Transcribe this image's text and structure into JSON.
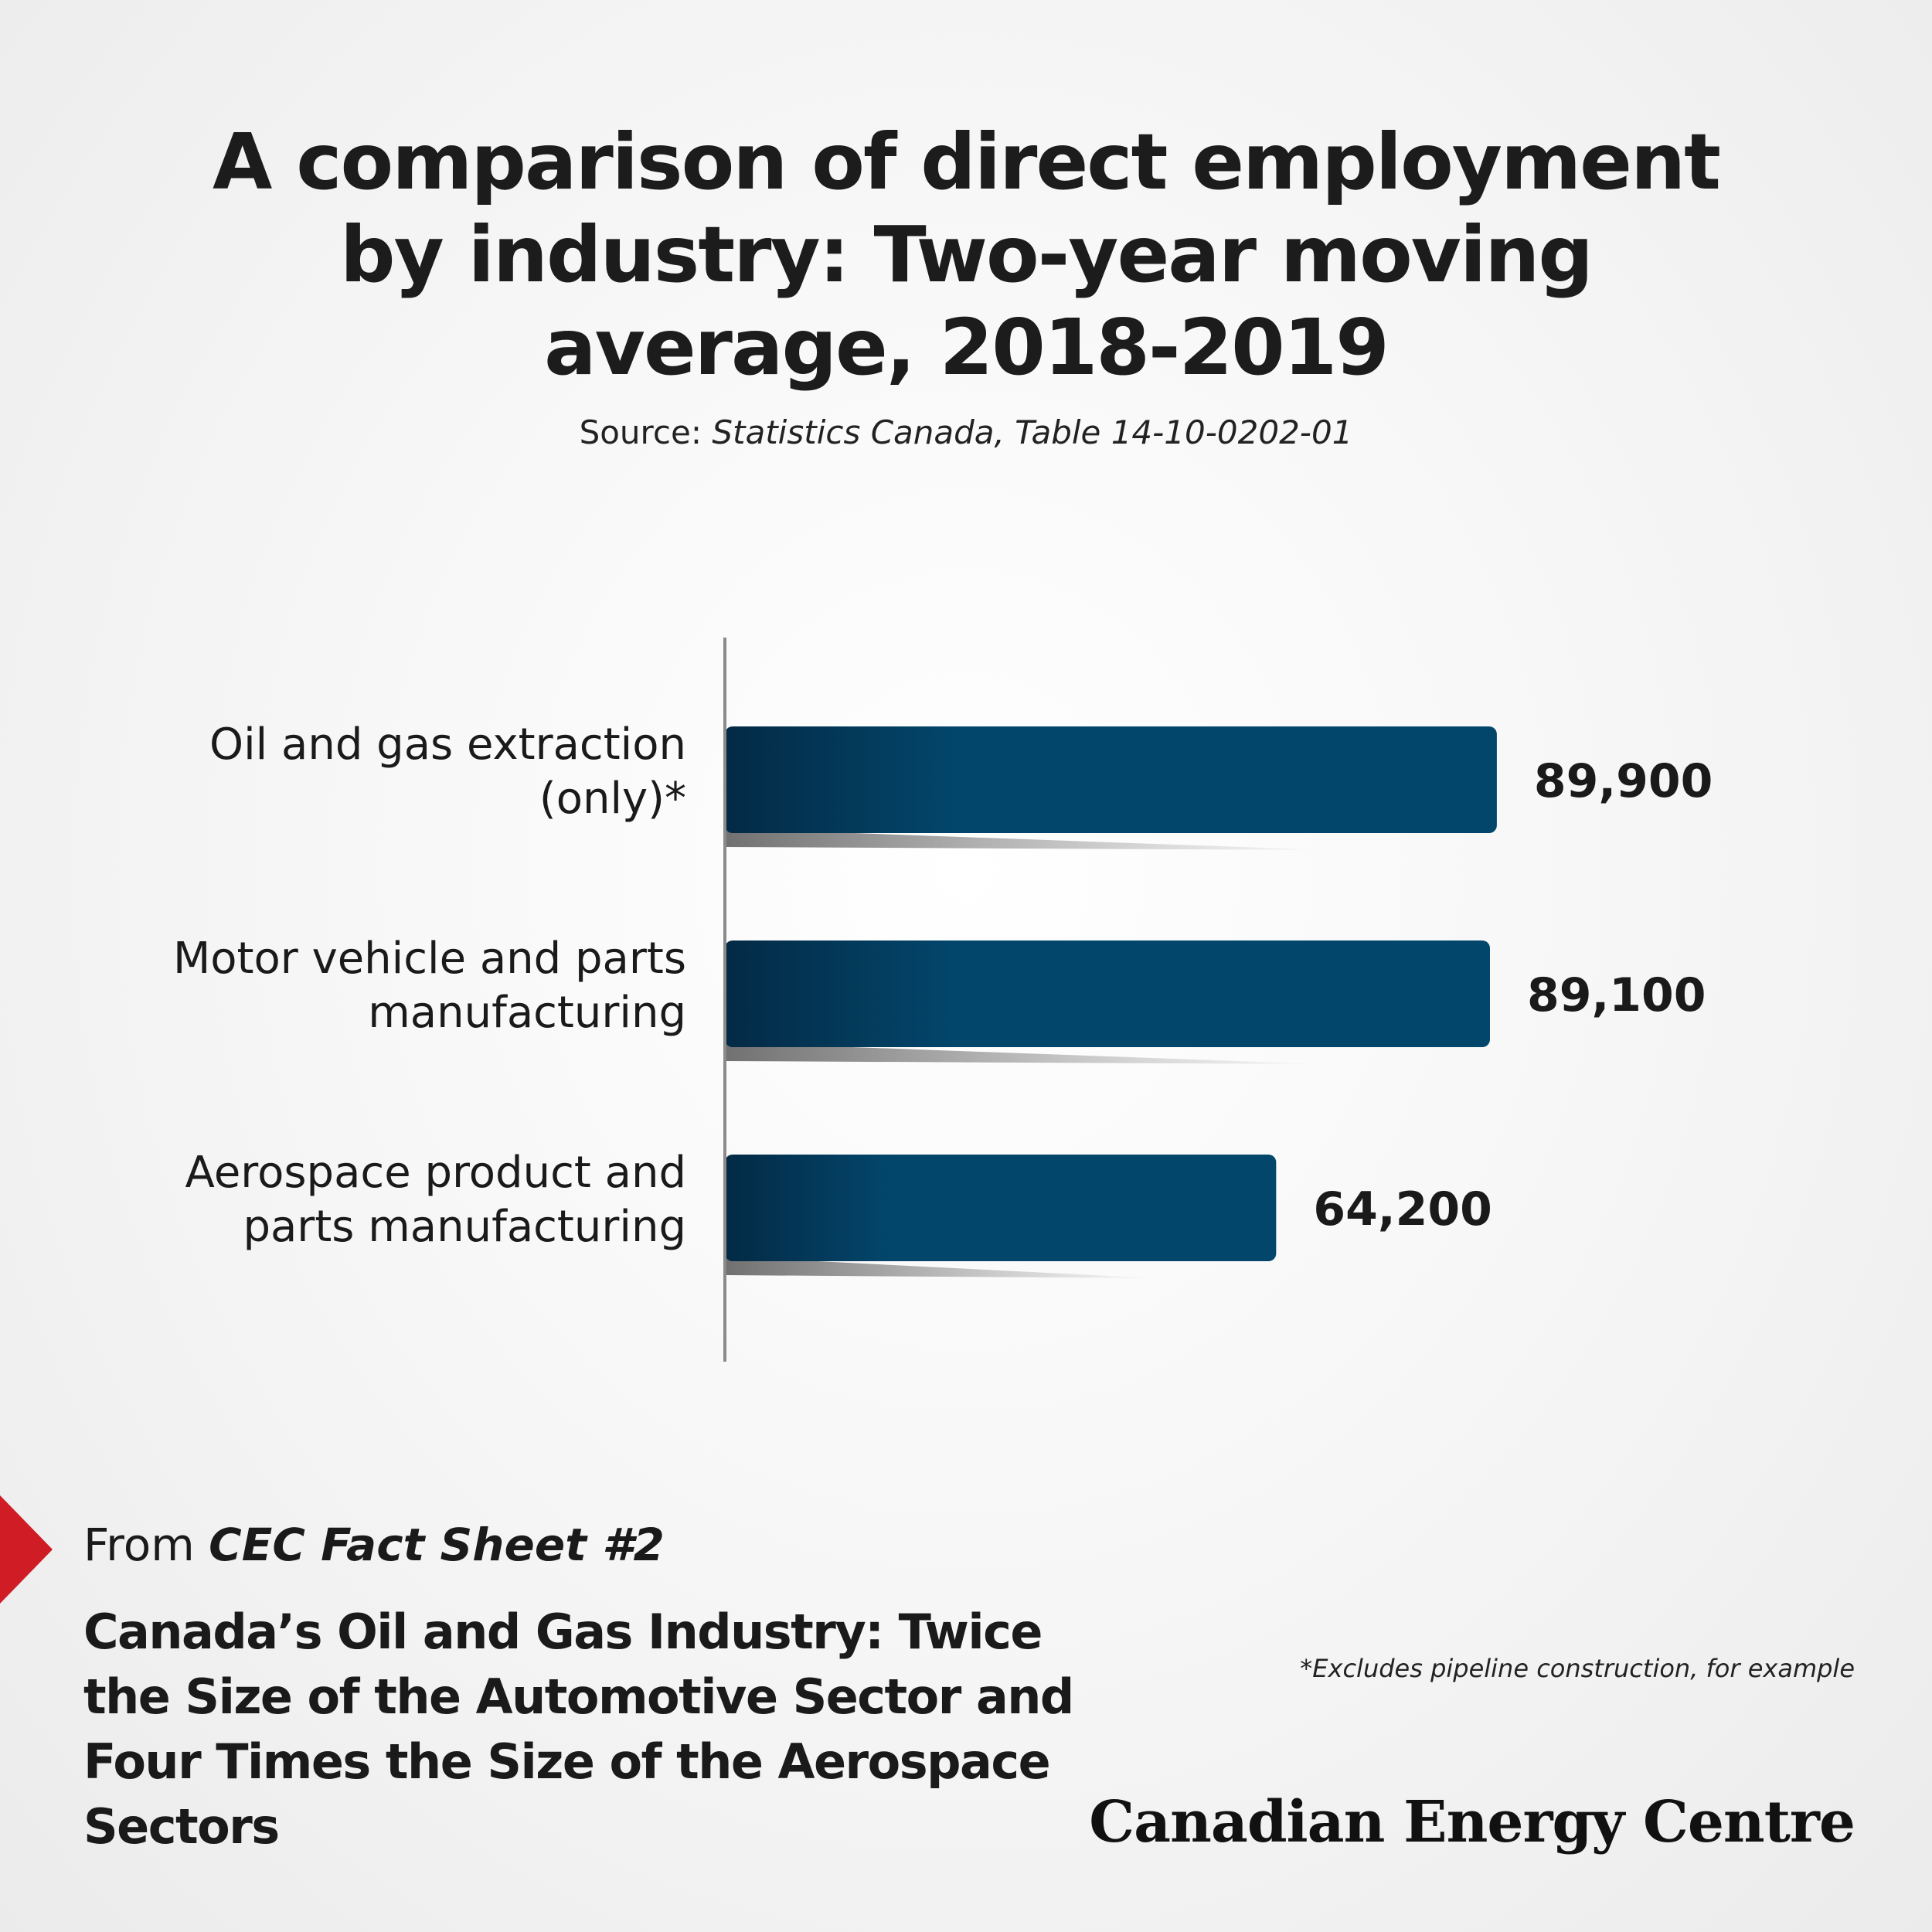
{
  "title": "A comparison of direct employment by industry: Two-year moving average, 2018-2019",
  "source": {
    "label": "Source:",
    "reference": "Statistics Canada, Table 14-10-0202-01"
  },
  "colors": {
    "bar_dark": "#032a45",
    "bar_main": "#03466b",
    "axis": "#8a8a8a",
    "accent_red": "#d01c24"
  },
  "chart_data": {
    "type": "bar",
    "orientation": "horizontal",
    "categories": [
      [
        "Oil and gas extraction",
        "(only)*"
      ],
      [
        "Motor vehicle and parts",
        "manufacturing"
      ],
      [
        "Aerospace product and",
        "parts manufacturing"
      ]
    ],
    "values": [
      89900,
      89100,
      64200
    ],
    "value_labels": [
      "89,900",
      "89,100",
      "64,200"
    ],
    "xlim": [
      0,
      90000
    ],
    "grid": false,
    "legend": "none"
  },
  "footer": {
    "from_prefix": "From",
    "fact_sheet": "CEC Fact Sheet  #2",
    "headline": "Canada’s Oil and Gas Industry: Twice the Size of the Automotive Sector and Four Times the Size of the Aerospace Sectors",
    "footnote": "*Excludes pipeline construction, for example",
    "logo_text": "Canadian Energy Centre"
  }
}
